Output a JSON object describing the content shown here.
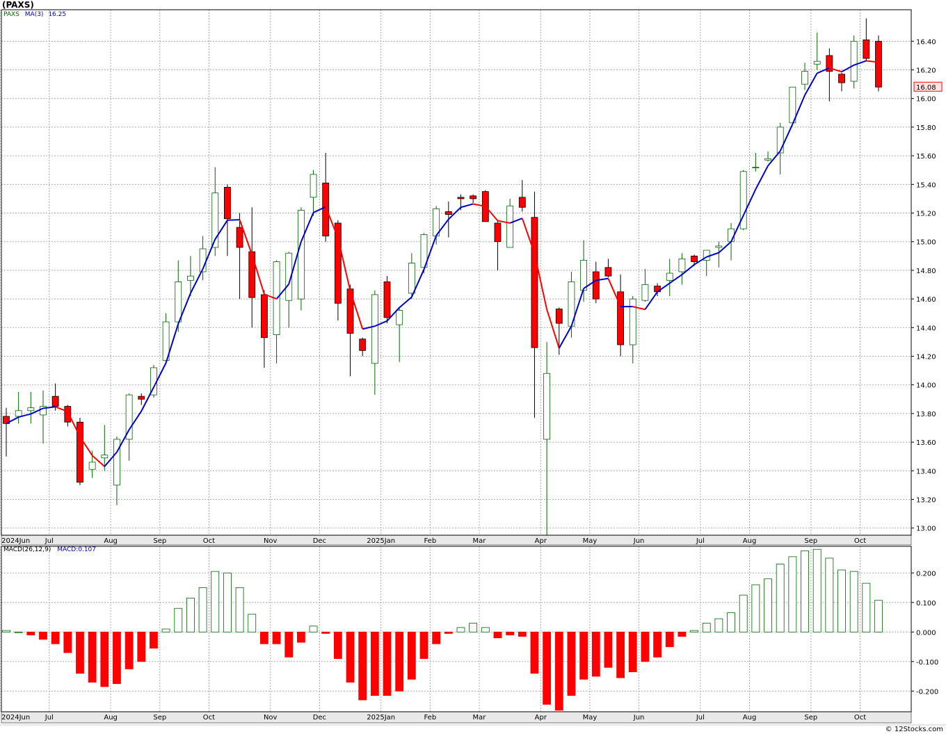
{
  "title": "(PAXS)",
  "price_legend": {
    "symbol": "PAXS",
    "ma_label": "MA(3)",
    "ma_value": "16.25"
  },
  "macd_legend": {
    "label": "MACD(26,12,9)",
    "value_label": "MACD:0.107"
  },
  "last_price_tag": "16.08",
  "watermark": "© 12Stocks.com",
  "colors": {
    "up": "#006400",
    "down": "#ff0000",
    "ma_up": "#0000cc",
    "ma_down": "#ff0000",
    "grid": "#aaaaaa",
    "axis_band": "#e8e8e8"
  },
  "chart_data": [
    {
      "type": "candlestick",
      "ylim": [
        12.95,
        16.62
      ],
      "yticks": [
        "13.00",
        "13.20",
        "13.40",
        "13.60",
        "13.80",
        "14.00",
        "14.20",
        "14.40",
        "14.60",
        "14.80",
        "15.00",
        "15.20",
        "15.40",
        "15.60",
        "15.80",
        "16.00",
        "16.20",
        "16.40"
      ],
      "xticks": [
        "2024Jun",
        "Jul",
        "Aug",
        "Sep",
        "Oct",
        "Nov",
        "Dec",
        "2025Jan",
        "Feb",
        "Mar",
        "Apr",
        "May",
        "Jun",
        "Jul",
        "Aug",
        "Sep",
        "Oct"
      ],
      "candles": [
        {
          "o": 13.78,
          "h": 13.84,
          "l": 13.5,
          "c": 13.73
        },
        {
          "o": 13.78,
          "h": 13.95,
          "l": 13.73,
          "c": 13.82
        },
        {
          "o": 13.82,
          "h": 13.95,
          "l": 13.73,
          "c": 13.84
        },
        {
          "o": 13.79,
          "h": 13.96,
          "l": 13.59,
          "c": 13.85
        },
        {
          "o": 13.92,
          "h": 14.01,
          "l": 13.82,
          "c": 13.85
        },
        {
          "o": 13.85,
          "h": 13.86,
          "l": 13.71,
          "c": 13.74
        },
        {
          "o": 13.74,
          "h": 13.77,
          "l": 13.3,
          "c": 13.32
        },
        {
          "o": 13.41,
          "h": 13.54,
          "l": 13.35,
          "c": 13.46
        },
        {
          "o": 13.49,
          "h": 13.72,
          "l": 13.4,
          "c": 13.51
        },
        {
          "o": 13.3,
          "h": 13.64,
          "l": 13.16,
          "c": 13.62
        },
        {
          "o": 13.62,
          "h": 13.94,
          "l": 13.47,
          "c": 13.93
        },
        {
          "o": 13.92,
          "h": 13.94,
          "l": 13.86,
          "c": 13.9
        },
        {
          "o": 13.93,
          "h": 14.14,
          "l": 13.91,
          "c": 14.12
        },
        {
          "o": 14.17,
          "h": 14.5,
          "l": 14.15,
          "c": 14.44
        },
        {
          "o": 14.44,
          "h": 14.87,
          "l": 14.37,
          "c": 14.72
        },
        {
          "o": 14.73,
          "h": 14.9,
          "l": 14.62,
          "c": 14.76
        },
        {
          "o": 14.79,
          "h": 15.04,
          "l": 14.73,
          "c": 14.95
        },
        {
          "o": 14.96,
          "h": 15.52,
          "l": 14.9,
          "c": 15.34
        },
        {
          "o": 15.38,
          "h": 15.4,
          "l": 14.9,
          "c": 15.16
        },
        {
          "o": 15.1,
          "h": 15.2,
          "l": 14.6,
          "c": 14.96
        },
        {
          "o": 14.93,
          "h": 15.24,
          "l": 14.4,
          "c": 14.61
        },
        {
          "o": 14.63,
          "h": 14.66,
          "l": 14.12,
          "c": 14.33
        },
        {
          "o": 14.35,
          "h": 14.87,
          "l": 14.15,
          "c": 14.86
        },
        {
          "o": 14.59,
          "h": 14.93,
          "l": 14.4,
          "c": 14.92
        },
        {
          "o": 14.6,
          "h": 15.24,
          "l": 14.52,
          "c": 15.22
        },
        {
          "o": 15.31,
          "h": 15.5,
          "l": 15.18,
          "c": 15.47
        },
        {
          "o": 15.41,
          "h": 15.62,
          "l": 15.0,
          "c": 15.04
        },
        {
          "o": 15.13,
          "h": 15.15,
          "l": 14.45,
          "c": 14.57
        },
        {
          "o": 14.67,
          "h": 14.7,
          "l": 14.06,
          "c": 14.36
        },
        {
          "o": 14.32,
          "h": 14.33,
          "l": 14.2,
          "c": 14.24
        },
        {
          "o": 14.15,
          "h": 14.66,
          "l": 13.93,
          "c": 14.63
        },
        {
          "o": 14.72,
          "h": 14.76,
          "l": 14.43,
          "c": 14.47
        },
        {
          "o": 14.42,
          "h": 14.54,
          "l": 14.16,
          "c": 14.52
        },
        {
          "o": 14.64,
          "h": 14.92,
          "l": 14.6,
          "c": 14.85
        },
        {
          "o": 14.82,
          "h": 15.06,
          "l": 14.78,
          "c": 15.05
        },
        {
          "o": 15.04,
          "h": 15.25,
          "l": 14.98,
          "c": 15.23
        },
        {
          "o": 15.21,
          "h": 15.28,
          "l": 15.03,
          "c": 15.19
        },
        {
          "o": 15.31,
          "h": 15.33,
          "l": 15.22,
          "c": 15.3
        },
        {
          "o": 15.32,
          "h": 15.33,
          "l": 15.27,
          "c": 15.3
        },
        {
          "o": 15.35,
          "h": 15.36,
          "l": 15.14,
          "c": 15.14
        },
        {
          "o": 15.13,
          "h": 15.15,
          "l": 14.8,
          "c": 15.0
        },
        {
          "o": 14.96,
          "h": 15.3,
          "l": 14.96,
          "c": 15.25
        },
        {
          "o": 15.31,
          "h": 15.43,
          "l": 15.21,
          "c": 15.24
        },
        {
          "o": 15.17,
          "h": 15.35,
          "l": 13.77,
          "c": 14.26
        },
        {
          "o": 13.62,
          "h": 14.3,
          "l": 12.95,
          "c": 14.08
        },
        {
          "o": 14.53,
          "h": 14.54,
          "l": 14.21,
          "c": 14.43
        },
        {
          "o": 14.41,
          "h": 14.79,
          "l": 14.33,
          "c": 14.72
        },
        {
          "o": 14.66,
          "h": 15.01,
          "l": 14.58,
          "c": 14.87
        },
        {
          "o": 14.79,
          "h": 14.86,
          "l": 14.57,
          "c": 14.6
        },
        {
          "o": 14.82,
          "h": 14.88,
          "l": 14.75,
          "c": 14.76
        },
        {
          "o": 14.65,
          "h": 14.77,
          "l": 14.2,
          "c": 14.28
        },
        {
          "o": 14.28,
          "h": 14.62,
          "l": 14.15,
          "c": 14.6
        },
        {
          "o": 14.59,
          "h": 14.81,
          "l": 14.58,
          "c": 14.7
        },
        {
          "o": 14.69,
          "h": 14.71,
          "l": 14.62,
          "c": 14.65
        },
        {
          "o": 14.73,
          "h": 14.88,
          "l": 14.62,
          "c": 14.78
        },
        {
          "o": 14.79,
          "h": 14.92,
          "l": 14.7,
          "c": 14.88
        },
        {
          "o": 14.9,
          "h": 14.91,
          "l": 14.83,
          "c": 14.86
        },
        {
          "o": 14.87,
          "h": 14.94,
          "l": 14.76,
          "c": 14.94
        },
        {
          "o": 14.96,
          "h": 15.0,
          "l": 14.82,
          "c": 14.97
        },
        {
          "o": 15.0,
          "h": 15.13,
          "l": 14.87,
          "c": 15.09
        },
        {
          "o": 15.09,
          "h": 15.5,
          "l": 15.08,
          "c": 15.49
        },
        {
          "o": 15.52,
          "h": 15.62,
          "l": 15.49,
          "c": 15.52
        },
        {
          "o": 15.57,
          "h": 15.63,
          "l": 15.56,
          "c": 15.58
        },
        {
          "o": 15.62,
          "h": 15.83,
          "l": 15.47,
          "c": 15.8
        },
        {
          "o": 15.83,
          "h": 16.08,
          "l": 15.83,
          "c": 16.08
        },
        {
          "o": 16.1,
          "h": 16.25,
          "l": 16.06,
          "c": 16.19
        },
        {
          "o": 16.24,
          "h": 16.46,
          "l": 16.2,
          "c": 16.26
        },
        {
          "o": 16.3,
          "h": 16.35,
          "l": 15.98,
          "c": 16.19
        },
        {
          "o": 16.17,
          "h": 16.18,
          "l": 16.05,
          "c": 16.11
        },
        {
          "o": 16.12,
          "h": 16.44,
          "l": 16.07,
          "c": 16.4
        },
        {
          "o": 16.41,
          "h": 16.56,
          "l": 16.26,
          "c": 16.28
        },
        {
          "o": 16.4,
          "h": 16.44,
          "l": 16.05,
          "c": 16.08
        }
      ]
    },
    {
      "type": "bar",
      "name": "MACD(26,12,9)",
      "ylim": [
        -0.27,
        0.29
      ],
      "yticks": [
        "-0.200",
        "-0.100",
        "0.000",
        "0.100",
        "0.200"
      ],
      "values": [
        0.005,
        0.0,
        -0.01,
        -0.025,
        -0.04,
        -0.07,
        -0.14,
        -0.17,
        -0.185,
        -0.175,
        -0.125,
        -0.1,
        -0.055,
        0.01,
        0.08,
        0.115,
        0.15,
        0.205,
        0.2,
        0.15,
        0.06,
        -0.04,
        -0.04,
        -0.085,
        -0.035,
        0.02,
        -0.005,
        -0.09,
        -0.17,
        -0.23,
        -0.215,
        -0.215,
        -0.2,
        -0.16,
        -0.09,
        -0.04,
        -0.005,
        0.015,
        0.03,
        0.015,
        -0.02,
        -0.01,
        -0.015,
        -0.14,
        -0.245,
        -0.265,
        -0.215,
        -0.16,
        -0.15,
        -0.12,
        -0.155,
        -0.135,
        -0.1,
        -0.085,
        -0.05,
        -0.015,
        0.005,
        0.03,
        0.045,
        0.065,
        0.125,
        0.16,
        0.18,
        0.23,
        0.255,
        0.275,
        0.28,
        0.25,
        0.21,
        0.205,
        0.165,
        0.107
      ]
    }
  ]
}
